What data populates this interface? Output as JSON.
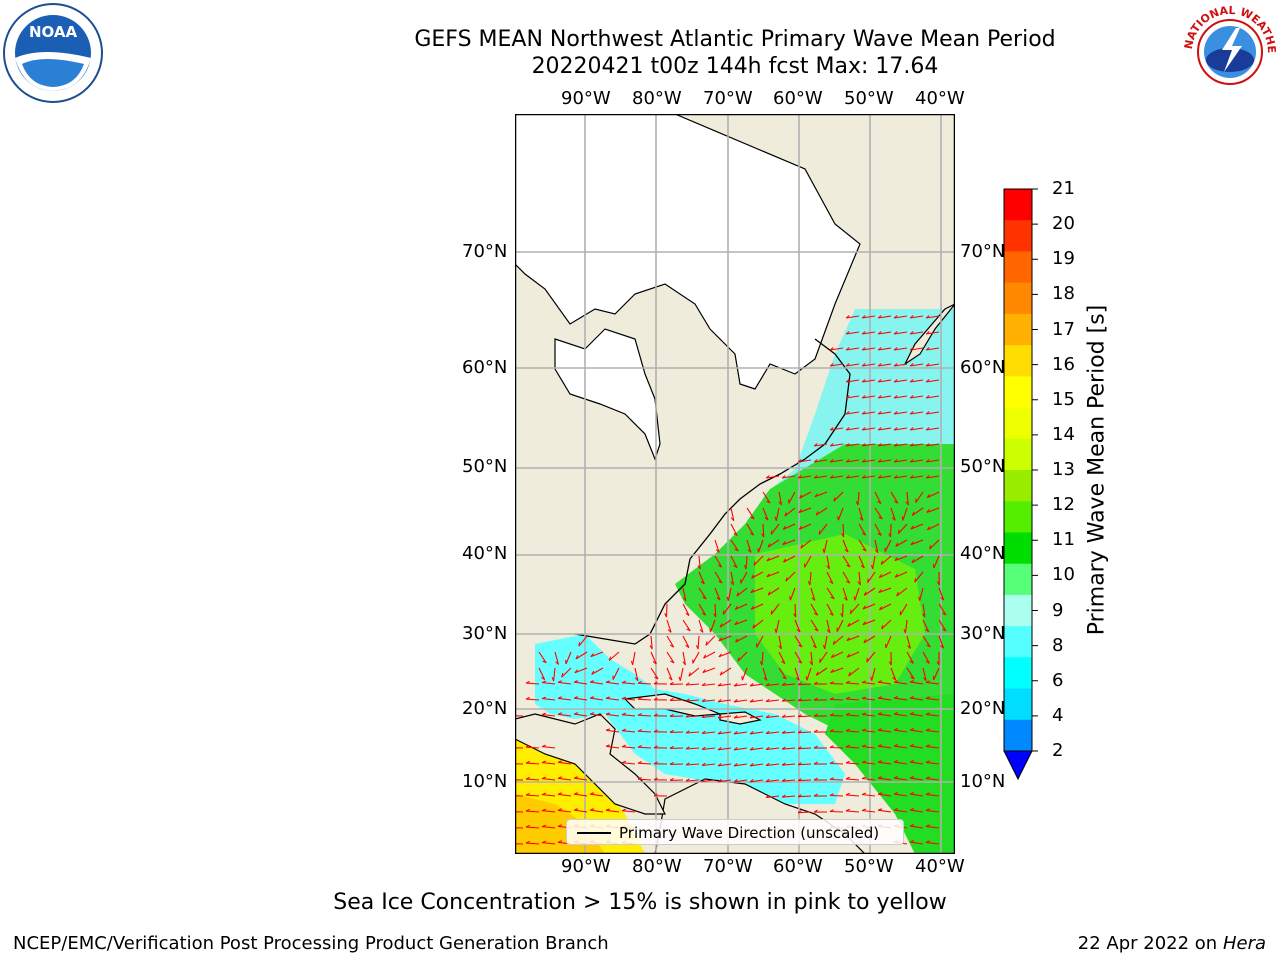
{
  "title_line1": "GEFS MEAN Northwest Atlantic Primary Wave Mean Period",
  "title_line2": "20220421 t00z 144h fcst   Max: 17.64",
  "lon_labels": [
    "90°W",
    "80°W",
    "70°W",
    "60°W",
    "50°W",
    "40°W"
  ],
  "lat_labels": [
    "70°N",
    "60°N",
    "50°N",
    "40°N",
    "30°N",
    "20°N",
    "10°N"
  ],
  "colorbar": {
    "label": "Primary Wave Mean Period [s]",
    "ticks": [
      "21",
      "20",
      "19",
      "18",
      "17",
      "16",
      "15",
      "14",
      "13",
      "12",
      "11",
      "10",
      "9",
      "8",
      "6",
      "4",
      "2"
    ],
    "colors": [
      "#ff0000",
      "#ff3300",
      "#ff6600",
      "#ff8800",
      "#ffb000",
      "#ffdd00",
      "#ffff00",
      "#eeff00",
      "#ccff00",
      "#99ee00",
      "#55ee00",
      "#00dd00",
      "#55ff77",
      "#aaffee",
      "#55ffff",
      "#00ffff",
      "#00ddff",
      "#0088ff",
      "#0000ff"
    ]
  },
  "legend_label": "Primary Wave Direction (unscaled)",
  "caption": "Sea Ice Concentration > 15% is shown in pink to yellow",
  "footer_left": "NCEP/EMC/Verification Post Processing Product Generation Branch",
  "footer_date": "22 Apr 2022 on",
  "footer_host": "Hera",
  "logos": {
    "left": "NOAA",
    "right": "NATIONAL WEATHER SERVICE"
  },
  "colors": {
    "land": "#efecdc",
    "ice_land": "#ffffff",
    "grid": "#b0b0b0",
    "arrow": "#ff0000"
  }
}
